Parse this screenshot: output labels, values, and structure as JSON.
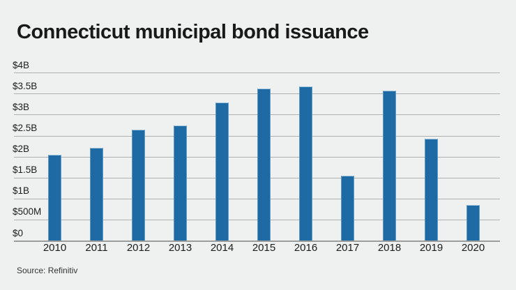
{
  "page": {
    "title": "Connecticut municipal bond issuance",
    "source": "Source: Refinitiv"
  },
  "chart_data": {
    "type": "bar",
    "title": "Connecticut municipal bond issuance",
    "categories": [
      "2010",
      "2011",
      "2012",
      "2013",
      "2014",
      "2015",
      "2016",
      "2017",
      "2018",
      "2019",
      "2020"
    ],
    "values": [
      2.05,
      2.22,
      2.65,
      2.75,
      3.3,
      3.63,
      3.68,
      1.55,
      3.58,
      2.43,
      0.85
    ],
    "unit": "USD billions",
    "xlabel": "",
    "ylabel": "",
    "ylim": [
      0,
      4
    ],
    "y_tick_values": [
      0,
      0.5,
      1,
      1.5,
      2,
      2.5,
      3,
      3.5,
      4
    ],
    "y_tick_labels": [
      "$0",
      "$500M",
      "$1B",
      "$1.5B",
      "$2B",
      "$2.5B",
      "$3B",
      "$3.5B",
      "$4B"
    ],
    "grid": true,
    "legend": "none",
    "bar_color": "#1d6aa5",
    "bar_edge_color": "#a3c6df",
    "background_color": "#eff1f0",
    "gridline_color": "#aeb0b0",
    "zero_line_color": "#9b9d9d",
    "text_color": "#191919",
    "source": "Source: Refinitiv"
  }
}
